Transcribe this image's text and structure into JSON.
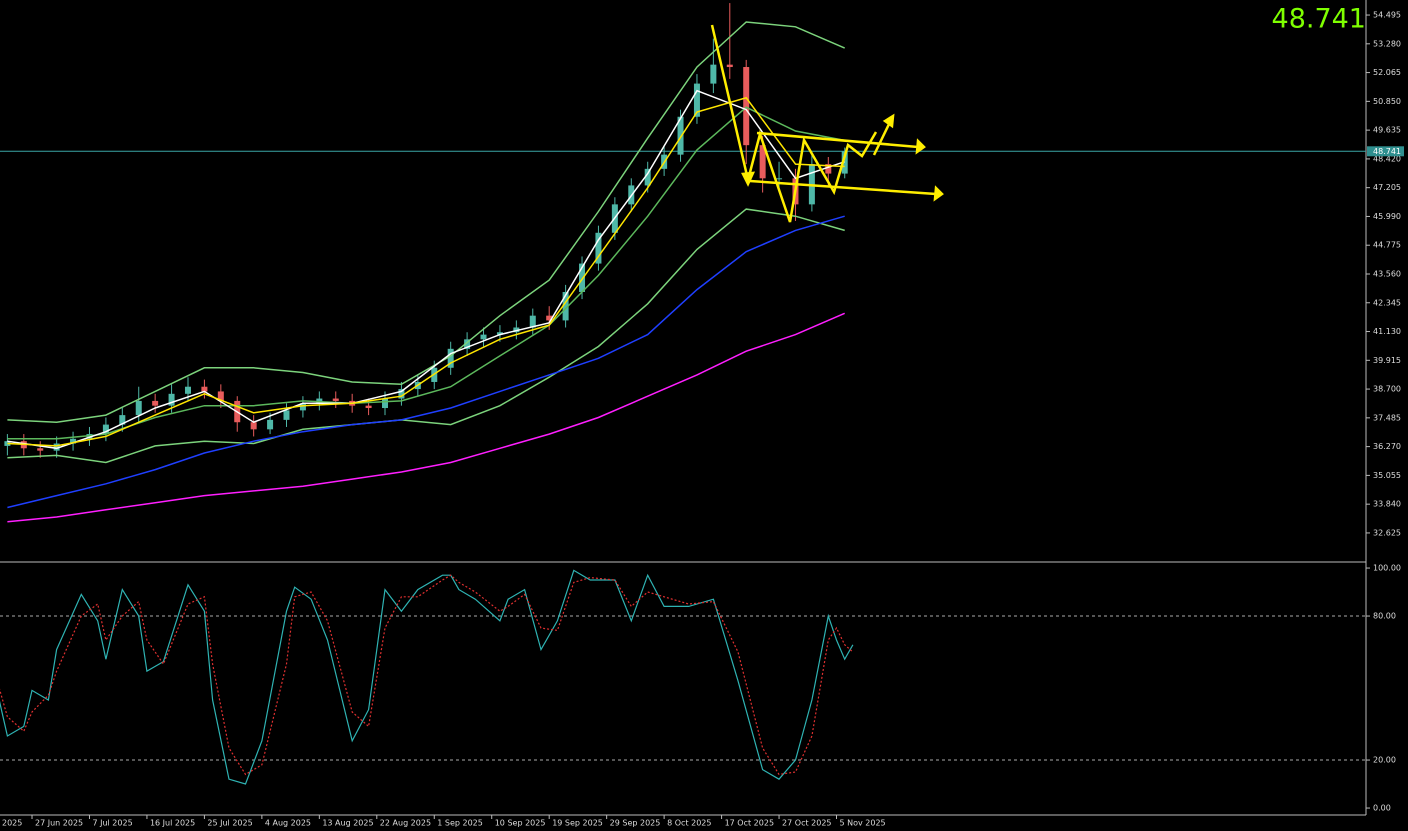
{
  "chart_data": [
    {
      "type": "candlestick",
      "current_price": 48.741,
      "xlim": [
        3.1,
        169.5
      ],
      "ylim": [
        31.44,
        55.13
      ],
      "yticks": [
        54.495,
        {
          "value": 53.28,
          "label": "53.280"
        },
        52.065,
        {
          "value": 50.85,
          "label": "50.850"
        },
        49.635,
        {
          "value": 48.42,
          "label": "48.420"
        },
        47.205,
        {
          "value": 45.99,
          "label": "45.990"
        },
        44.775,
        {
          "value": 43.56,
          "label": "43.560"
        },
        42.345,
        {
          "value": 41.13,
          "label": "41.130"
        },
        39.915,
        {
          "value": 38.7,
          "label": "38.700"
        },
        37.485,
        {
          "value": 36.27,
          "label": "36.270"
        },
        35.055,
        {
          "value": 33.84,
          "label": "33.840"
        },
        32.625
      ],
      "up_color": "#4fb8a8",
      "down_color": "#e85c5c",
      "x": [
        4,
        6,
        8,
        10,
        12,
        14,
        16,
        18,
        20,
        22,
        24,
        26,
        28,
        30,
        32,
        34,
        36,
        38,
        40,
        42,
        44,
        46,
        48,
        50,
        52,
        54,
        56,
        58,
        60,
        62,
        64,
        66,
        68,
        70,
        72,
        74,
        76,
        78,
        80,
        82,
        84,
        86,
        88,
        90,
        92,
        94,
        96,
        98,
        100,
        102,
        104,
        106
      ],
      "open": [
        36.3,
        36.5,
        36.2,
        36.1,
        36.4,
        36.6,
        36.8,
        37.2,
        37.6,
        38.2,
        38.0,
        38.5,
        38.8,
        38.6,
        38.2,
        37.3,
        37.0,
        37.4,
        37.8,
        38.1,
        38.3,
        38.2,
        38.0,
        37.9,
        38.3,
        38.7,
        39.0,
        39.6,
        40.4,
        40.8,
        41.0,
        41.1,
        41.3,
        41.8,
        41.6,
        42.8,
        44.0,
        45.3,
        46.5,
        47.3,
        48.0,
        48.6,
        50.2,
        51.6,
        52.4,
        52.3,
        49.0,
        47.6,
        47.6,
        46.5,
        48.2,
        47.8
      ],
      "high": [
        36.8,
        36.8,
        36.5,
        36.7,
        36.9,
        37.1,
        37.5,
        37.9,
        38.8,
        38.5,
        38.9,
        39.2,
        39.1,
        38.9,
        38.4,
        37.6,
        37.7,
        38.1,
        38.4,
        38.6,
        38.6,
        38.5,
        38.3,
        38.6,
        39.0,
        39.3,
        39.9,
        40.7,
        41.1,
        41.3,
        41.4,
        41.6,
        42.1,
        42.2,
        43.1,
        44.3,
        45.6,
        46.8,
        47.6,
        48.3,
        49.0,
        50.5,
        52.0,
        53.5,
        55.0,
        52.6,
        49.4,
        48.3,
        48.0,
        48.6,
        48.5,
        48.9
      ],
      "low": [
        35.9,
        35.9,
        35.8,
        35.8,
        36.1,
        36.3,
        36.5,
        36.9,
        37.3,
        37.7,
        37.7,
        38.2,
        38.3,
        37.9,
        36.9,
        36.7,
        36.8,
        37.1,
        37.5,
        37.8,
        37.9,
        37.7,
        37.6,
        37.6,
        38.0,
        38.4,
        38.7,
        39.3,
        40.1,
        40.5,
        40.7,
        40.8,
        41.0,
        41.2,
        41.3,
        42.5,
        43.7,
        45.0,
        46.2,
        47.0,
        47.7,
        48.3,
        49.9,
        51.2,
        51.8,
        48.2,
        47.0,
        47.1,
        45.8,
        46.2,
        47.3,
        47.6
      ],
      "close": [
        36.5,
        36.2,
        36.1,
        36.4,
        36.6,
        36.8,
        37.2,
        37.6,
        38.2,
        38.0,
        38.5,
        38.8,
        38.6,
        38.2,
        37.3,
        37.0,
        37.4,
        37.8,
        38.1,
        38.3,
        38.2,
        38.0,
        37.9,
        38.3,
        38.7,
        39.0,
        39.6,
        40.4,
        40.8,
        41.0,
        41.1,
        41.3,
        41.8,
        41.6,
        42.8,
        44.0,
        45.3,
        46.5,
        47.3,
        48.0,
        48.6,
        50.2,
        51.6,
        52.4,
        52.3,
        49.0,
        47.6,
        47.6,
        46.5,
        48.2,
        47.8,
        48.741
      ],
      "line_x": [
        4,
        10,
        16,
        22,
        28,
        34,
        40,
        46,
        52,
        58,
        64,
        70,
        76,
        82,
        88,
        94,
        100,
        106
      ],
      "lines": [
        {
          "color": "#7cd37c",
          "values": [
            37.4,
            37.3,
            37.6,
            38.6,
            39.6,
            39.6,
            39.4,
            39.0,
            38.9,
            40.1,
            41.8,
            43.3,
            46.2,
            49.3,
            52.3,
            54.2,
            54.0,
            53.1
          ]
        },
        {
          "color": "#5cb85c",
          "values": [
            36.6,
            36.6,
            36.8,
            37.5,
            38.0,
            38.0,
            38.2,
            38.1,
            38.2,
            38.8,
            40.1,
            41.4,
            43.5,
            46.0,
            48.8,
            50.6,
            49.6,
            49.2
          ]
        },
        {
          "color": "#7cd37c",
          "values": [
            35.8,
            35.9,
            35.6,
            36.3,
            36.5,
            36.4,
            37.0,
            37.2,
            37.4,
            37.2,
            38.0,
            39.2,
            40.5,
            42.3,
            44.6,
            46.3,
            46.0,
            45.4
          ]
        },
        {
          "color": "#ffffff",
          "values": [
            36.5,
            36.2,
            36.9,
            37.9,
            38.6,
            37.3,
            38.1,
            38.1,
            38.6,
            40.2,
            41.0,
            41.5,
            45.0,
            47.8,
            51.3,
            50.5,
            47.6,
            48.3
          ]
        },
        {
          "color": "#ffe600",
          "values": [
            36.4,
            36.3,
            36.7,
            37.6,
            38.5,
            37.7,
            38.0,
            38.1,
            38.4,
            39.8,
            40.8,
            41.4,
            44.3,
            47.2,
            50.4,
            51.0,
            48.2,
            48.1
          ]
        },
        {
          "color": "#1f3fff",
          "values": [
            33.7,
            34.2,
            34.7,
            35.3,
            36.0,
            36.5,
            36.9,
            37.2,
            37.4,
            37.9,
            38.6,
            39.3,
            40.0,
            41.0,
            42.9,
            44.5,
            45.4,
            46.0
          ]
        },
        {
          "color": "#ff1fff",
          "values": [
            33.1,
            33.3,
            33.6,
            33.9,
            34.2,
            34.4,
            34.6,
            34.9,
            35.2,
            35.6,
            36.2,
            36.8,
            37.5,
            38.4,
            39.3,
            40.3,
            41.0,
            41.9
          ]
        }
      ]
    },
    {
      "type": "line",
      "xlim": [
        3.1,
        169.5
      ],
      "ylim": [
        -2.9,
        102.1
      ],
      "yticks": [
        {
          "value": 0,
          "label": "0.00"
        },
        {
          "value": 20,
          "label": "20.00"
        },
        {
          "value": 80,
          "label": "80.00"
        },
        {
          "value": 100,
          "label": "100.00"
        }
      ],
      "levels": [
        20,
        80
      ],
      "xticks": [
        {
          "value": 0,
          "label": "2025"
        },
        {
          "value": 7,
          "label": "27 Jun 2025"
        },
        {
          "value": 14,
          "label": "7 Jul 2025"
        },
        {
          "value": 21,
          "label": "16 Jul 2025"
        },
        {
          "value": 28,
          "label": "25 Jul 2025"
        },
        {
          "value": 35,
          "label": "4 Aug 2025"
        },
        {
          "value": 42,
          "label": "13 Aug 2025"
        },
        {
          "value": 49,
          "label": "22 Aug 2025"
        },
        {
          "value": 56,
          "label": "1 Sep 2025"
        },
        {
          "value": 63,
          "label": "10 Sep 2025"
        },
        {
          "value": 70,
          "label": "19 Sep 2025"
        },
        {
          "value": 77,
          "label": "29 Sep 2025"
        },
        {
          "value": 84,
          "label": "8 Oct 2025"
        },
        {
          "value": 91,
          "label": "17 Oct 2025"
        },
        {
          "value": 98,
          "label": "27 Oct 2025"
        },
        {
          "value": 105,
          "label": "5 Nov 2025"
        }
      ],
      "x": [
        3,
        4,
        6,
        7,
        9,
        10,
        13,
        15,
        16,
        18,
        20,
        21,
        23,
        26,
        28,
        29,
        31,
        33,
        35,
        38,
        39,
        41,
        43,
        46,
        48,
        50,
        52,
        54,
        57,
        58,
        59,
        61,
        64,
        65,
        67,
        69,
        71,
        73,
        75,
        78,
        80,
        82,
        84,
        87,
        90,
        93,
        96,
        98,
        100,
        102,
        104,
        105,
        106,
        107
      ],
      "series": [
        {
          "color": "#2fb3b3",
          "dash": false,
          "values": [
            45,
            30,
            34,
            49,
            45,
            66,
            89,
            78,
            62,
            91,
            80,
            57,
            61,
            93,
            82,
            45,
            12,
            10,
            28,
            82,
            92,
            87,
            70,
            28,
            41,
            91,
            82,
            91,
            97,
            97,
            91,
            87,
            78,
            87,
            91,
            66,
            78,
            99,
            95,
            95,
            78,
            97,
            84,
            84,
            87,
            53,
            16,
            12,
            20,
            45,
            80,
            70,
            62,
            68
          ]
        },
        {
          "color": "#e03030",
          "dash": true,
          "values": [
            50,
            38,
            32,
            40,
            47,
            57,
            80,
            85,
            70,
            80,
            86,
            70,
            60,
            85,
            88,
            60,
            25,
            14,
            18,
            60,
            88,
            90,
            78,
            40,
            34,
            75,
            88,
            88,
            95,
            97,
            94,
            90,
            82,
            84,
            89,
            75,
            74,
            94,
            96,
            95,
            84,
            90,
            88,
            85,
            86,
            65,
            25,
            14,
            15,
            30,
            70,
            75,
            68,
            65
          ]
        }
      ]
    }
  ]
}
